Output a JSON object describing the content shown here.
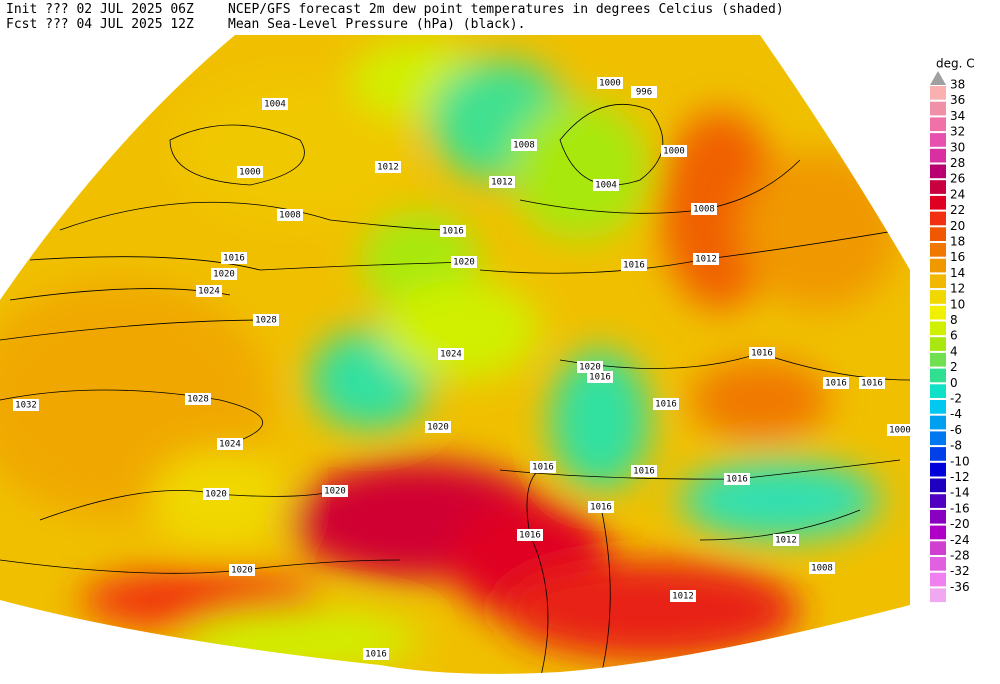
{
  "header": {
    "init": "Init  ??? 02 JUL 2025 06Z",
    "fcst": "Fcst ??? 04 JUL 2025 12Z",
    "title": "NCEP/GFS forecast 2m dew point temperatures in degrees Celcius (shaded)",
    "subtitle": "Mean Sea-Level Pressure (hPa) (black)."
  },
  "colorbar": {
    "unit": "deg. C",
    "levels": [
      38,
      36,
      34,
      32,
      30,
      28,
      26,
      24,
      22,
      20,
      18,
      16,
      14,
      12,
      10,
      8,
      6,
      4,
      2,
      0,
      -2,
      -4,
      -6,
      -8,
      -10,
      -12,
      -14,
      -16,
      -20,
      -24,
      -28,
      -32,
      -36
    ],
    "colors": [
      "#f8b0b0",
      "#f090a8",
      "#f070a8",
      "#e850b0",
      "#d830a0",
      "#b80070",
      "#c80040",
      "#e00020",
      "#f03010",
      "#f05800",
      "#f07800",
      "#f09800",
      "#f0b800",
      "#f0d800",
      "#f0f000",
      "#d0f000",
      "#a8e810",
      "#70e050",
      "#30e090",
      "#10e0c8",
      "#00c8f0",
      "#00a0f0",
      "#0078f0",
      "#0040e8",
      "#0000d8",
      "#2000c0",
      "#5000c0",
      "#8800c0",
      "#b000c8",
      "#d040d0",
      "#e060e0",
      "#f080f0",
      "#f0a8f0"
    ],
    "above_color": "#a0a0a0"
  },
  "isobar_labels": [
    1004,
    1000,
    1012,
    1008,
    1016,
    1020,
    1024,
    1028,
    1032,
    1028,
    1024,
    1020,
    1020,
    1020,
    1020,
    1024,
    1020,
    1016,
    1012,
    1008,
    1000,
    996,
    1000,
    1004,
    1008,
    1012,
    1016,
    1016,
    1016,
    1016,
    1020,
    1016,
    1016,
    1016,
    1016,
    1016,
    1016,
    1016,
    1012,
    1008,
    1012,
    1016,
    1000
  ]
}
